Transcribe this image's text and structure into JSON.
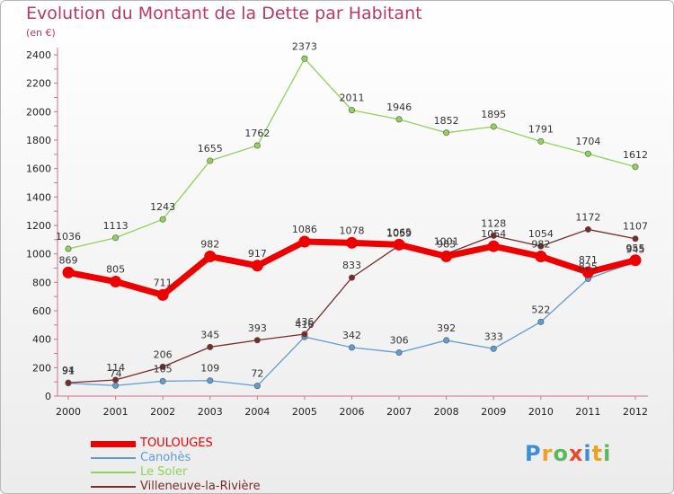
{
  "chart_data": {
    "type": "line",
    "title": "Evolution du Montant de la Dette par Habitant",
    "subtitle": "(en €)",
    "x": [
      "2000",
      "2001",
      "2002",
      "2003",
      "2004",
      "2005",
      "2006",
      "2007",
      "2008",
      "2009",
      "2010",
      "2011",
      "2012"
    ],
    "ylim": [
      0,
      2400
    ],
    "yticks": [
      0,
      200,
      400,
      600,
      800,
      1000,
      1200,
      1400,
      1600,
      1800,
      2000,
      2200,
      2400
    ],
    "grid": false,
    "legend_position": "bottom-left",
    "series": [
      {
        "name": "TOULOUGES",
        "color": "#ee0000",
        "values": [
          869,
          805,
          711,
          982,
          917,
          1086,
          1078,
          1065,
          983,
          1054,
          982,
          871,
          955
        ]
      },
      {
        "name": "Canohès",
        "color": "#5e9cd3",
        "values": [
          91,
          74,
          105,
          109,
          72,
          416,
          342,
          306,
          392,
          333,
          522,
          825,
          945
        ]
      },
      {
        "name": "Le Soler",
        "color": "#8fd35a",
        "values": [
          1036,
          1113,
          1243,
          1655,
          1762,
          2373,
          2011,
          1946,
          1852,
          1895,
          1791,
          1704,
          1612
        ]
      },
      {
        "name": "Villeneuve-la-Rivière",
        "color": "#7b2a2a",
        "values": [
          94,
          114,
          206,
          345,
          393,
          436,
          833,
          1059,
          1001,
          1128,
          1054,
          1172,
          1107
        ]
      }
    ]
  },
  "logo": {
    "letters": [
      "P",
      "r",
      "o",
      "x",
      "i",
      "t",
      "i"
    ],
    "colors": [
      "#3a8fd6",
      "#f0a020",
      "#5cb85c",
      "#e84a2a",
      "#3a8fd6",
      "#f0a020",
      "#5cb85c"
    ]
  }
}
